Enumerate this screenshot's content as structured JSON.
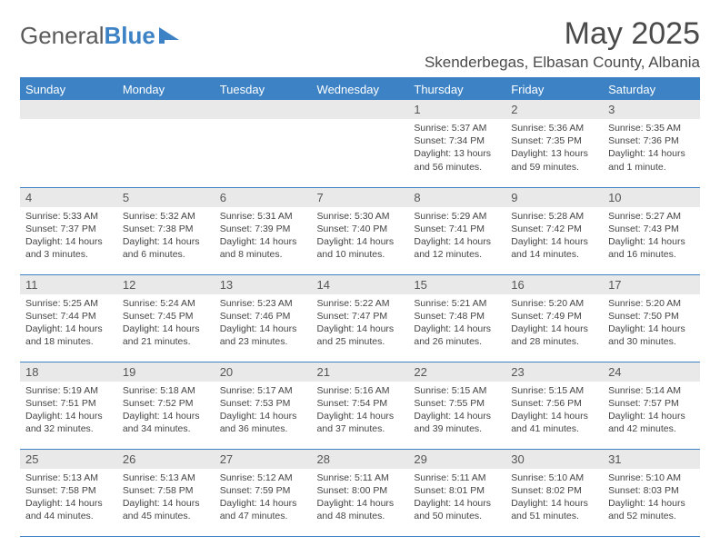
{
  "brand": {
    "text1": "General",
    "text2": "Blue"
  },
  "title": "May 2025",
  "location": "Skenderbegas, Elbasan County, Albania",
  "colors": {
    "accent": "#3c82c5",
    "header_text": "#ffffff",
    "daynum_bg": "#e9e9e9",
    "body_text": "#444444"
  },
  "day_headers": [
    "Sunday",
    "Monday",
    "Tuesday",
    "Wednesday",
    "Thursday",
    "Friday",
    "Saturday"
  ],
  "weeks": [
    [
      null,
      null,
      null,
      null,
      {
        "n": "1",
        "sr": "5:37 AM",
        "ss": "7:34 PM",
        "dl": "13 hours and 56 minutes."
      },
      {
        "n": "2",
        "sr": "5:36 AM",
        "ss": "7:35 PM",
        "dl": "13 hours and 59 minutes."
      },
      {
        "n": "3",
        "sr": "5:35 AM",
        "ss": "7:36 PM",
        "dl": "14 hours and 1 minute."
      }
    ],
    [
      {
        "n": "4",
        "sr": "5:33 AM",
        "ss": "7:37 PM",
        "dl": "14 hours and 3 minutes."
      },
      {
        "n": "5",
        "sr": "5:32 AM",
        "ss": "7:38 PM",
        "dl": "14 hours and 6 minutes."
      },
      {
        "n": "6",
        "sr": "5:31 AM",
        "ss": "7:39 PM",
        "dl": "14 hours and 8 minutes."
      },
      {
        "n": "7",
        "sr": "5:30 AM",
        "ss": "7:40 PM",
        "dl": "14 hours and 10 minutes."
      },
      {
        "n": "8",
        "sr": "5:29 AM",
        "ss": "7:41 PM",
        "dl": "14 hours and 12 minutes."
      },
      {
        "n": "9",
        "sr": "5:28 AM",
        "ss": "7:42 PM",
        "dl": "14 hours and 14 minutes."
      },
      {
        "n": "10",
        "sr": "5:27 AM",
        "ss": "7:43 PM",
        "dl": "14 hours and 16 minutes."
      }
    ],
    [
      {
        "n": "11",
        "sr": "5:25 AM",
        "ss": "7:44 PM",
        "dl": "14 hours and 18 minutes."
      },
      {
        "n": "12",
        "sr": "5:24 AM",
        "ss": "7:45 PM",
        "dl": "14 hours and 21 minutes."
      },
      {
        "n": "13",
        "sr": "5:23 AM",
        "ss": "7:46 PM",
        "dl": "14 hours and 23 minutes."
      },
      {
        "n": "14",
        "sr": "5:22 AM",
        "ss": "7:47 PM",
        "dl": "14 hours and 25 minutes."
      },
      {
        "n": "15",
        "sr": "5:21 AM",
        "ss": "7:48 PM",
        "dl": "14 hours and 26 minutes."
      },
      {
        "n": "16",
        "sr": "5:20 AM",
        "ss": "7:49 PM",
        "dl": "14 hours and 28 minutes."
      },
      {
        "n": "17",
        "sr": "5:20 AM",
        "ss": "7:50 PM",
        "dl": "14 hours and 30 minutes."
      }
    ],
    [
      {
        "n": "18",
        "sr": "5:19 AM",
        "ss": "7:51 PM",
        "dl": "14 hours and 32 minutes."
      },
      {
        "n": "19",
        "sr": "5:18 AM",
        "ss": "7:52 PM",
        "dl": "14 hours and 34 minutes."
      },
      {
        "n": "20",
        "sr": "5:17 AM",
        "ss": "7:53 PM",
        "dl": "14 hours and 36 minutes."
      },
      {
        "n": "21",
        "sr": "5:16 AM",
        "ss": "7:54 PM",
        "dl": "14 hours and 37 minutes."
      },
      {
        "n": "22",
        "sr": "5:15 AM",
        "ss": "7:55 PM",
        "dl": "14 hours and 39 minutes."
      },
      {
        "n": "23",
        "sr": "5:15 AM",
        "ss": "7:56 PM",
        "dl": "14 hours and 41 minutes."
      },
      {
        "n": "24",
        "sr": "5:14 AM",
        "ss": "7:57 PM",
        "dl": "14 hours and 42 minutes."
      }
    ],
    [
      {
        "n": "25",
        "sr": "5:13 AM",
        "ss": "7:58 PM",
        "dl": "14 hours and 44 minutes."
      },
      {
        "n": "26",
        "sr": "5:13 AM",
        "ss": "7:58 PM",
        "dl": "14 hours and 45 minutes."
      },
      {
        "n": "27",
        "sr": "5:12 AM",
        "ss": "7:59 PM",
        "dl": "14 hours and 47 minutes."
      },
      {
        "n": "28",
        "sr": "5:11 AM",
        "ss": "8:00 PM",
        "dl": "14 hours and 48 minutes."
      },
      {
        "n": "29",
        "sr": "5:11 AM",
        "ss": "8:01 PM",
        "dl": "14 hours and 50 minutes."
      },
      {
        "n": "30",
        "sr": "5:10 AM",
        "ss": "8:02 PM",
        "dl": "14 hours and 51 minutes."
      },
      {
        "n": "31",
        "sr": "5:10 AM",
        "ss": "8:03 PM",
        "dl": "14 hours and 52 minutes."
      }
    ]
  ],
  "labels": {
    "sunrise": "Sunrise:",
    "sunset": "Sunset:",
    "daylight": "Daylight:"
  }
}
